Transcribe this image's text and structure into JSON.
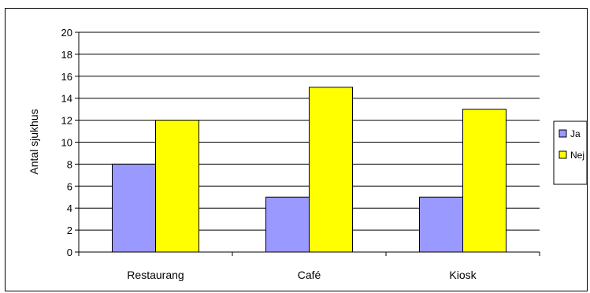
{
  "chart_data": {
    "type": "bar",
    "categories": [
      "Restaurang",
      "Café",
      "Kiosk"
    ],
    "series": [
      {
        "name": "Ja",
        "values": [
          8,
          5,
          5
        ],
        "color": "#9999ff"
      },
      {
        "name": "Nej",
        "values": [
          12,
          15,
          13
        ],
        "color": "#ffff00"
      }
    ],
    "xlabel": "",
    "ylabel": "Antal sjukhus",
    "ylim": [
      0,
      20
    ],
    "yticks": [
      0,
      2,
      4,
      6,
      8,
      10,
      12,
      14,
      16,
      18,
      20
    ],
    "grid": true,
    "legend_position": "right"
  }
}
